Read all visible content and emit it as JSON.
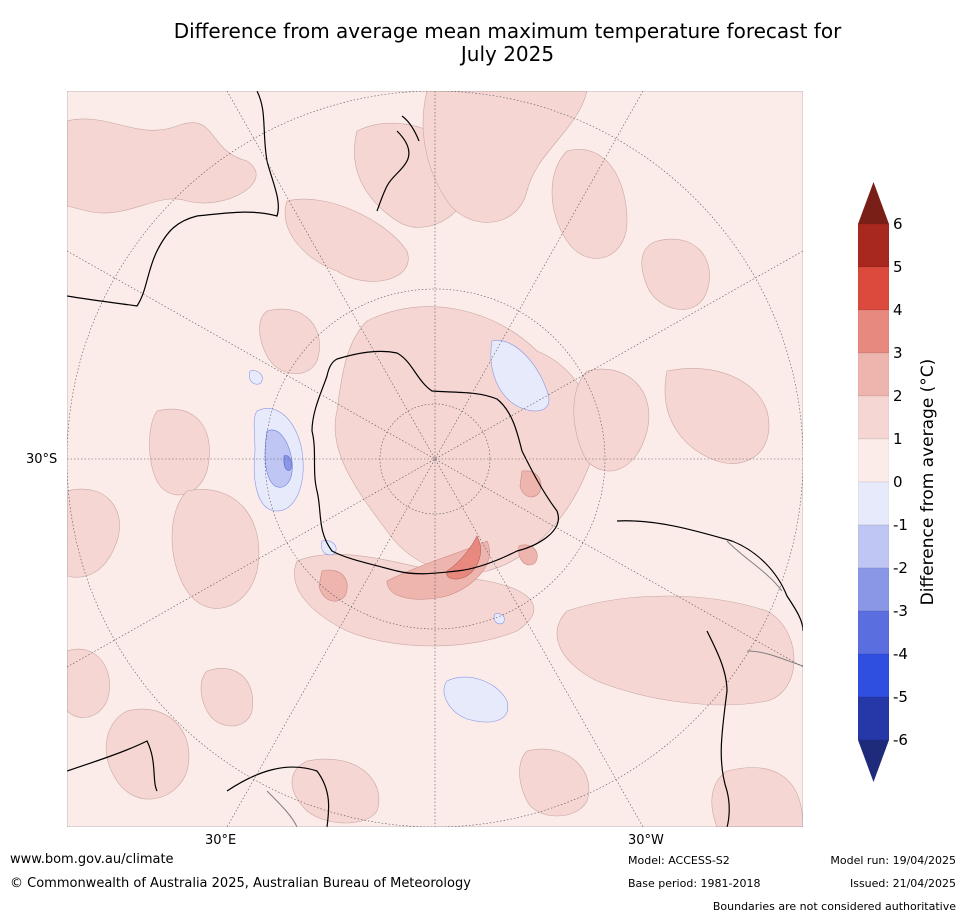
{
  "title_line1": "Difference from average mean maximum temperature forecast for",
  "title_line2": "July 2025",
  "map": {
    "graticule_labels": {
      "lat_30s": "30°S",
      "lon_30e": "30°E",
      "lon_30w": "30°W"
    },
    "colors": {
      "ocean_base": "#fbecea",
      "warm_0_1": "#fbecea",
      "warm_1_2": "#f5d6d3",
      "warm_2_3": "#eeb4ae",
      "warm_3_4": "#e8897f",
      "cool_0_m1": "#e7eafb",
      "cool_m1_m2": "#bfc6f3",
      "cool_m2_m3": "#8a97e6",
      "coastline": "#000000",
      "border": "#808080",
      "graticule": "#555555"
    }
  },
  "colorbar": {
    "title": "Difference from average (°C)",
    "ticks": [
      "6",
      "5",
      "4",
      "3",
      "2",
      "1",
      "0",
      "-1",
      "-2",
      "-3",
      "-4",
      "-5",
      "-6"
    ],
    "bands": [
      "#a8271f",
      "#db4a3d",
      "#e8897f",
      "#eeb4ae",
      "#f5d6d3",
      "#fbecea",
      "#e7eafb",
      "#bfc6f3",
      "#8a97e6",
      "#5a6ee0",
      "#2f4fe0",
      "#2637a8"
    ],
    "extend_top": "#7a1f18",
    "extend_bottom": "#1e2a7a"
  },
  "footer": {
    "website": "www.bom.gov.au/climate",
    "copyright": "© Commonwealth of Australia 2025, Australian Bureau of Meteorology",
    "model": "Model: ACCESS-S2",
    "base_period": "Base period: 1981-2018",
    "model_run": "Model run: 19/04/2025",
    "issued": "Issued: 21/04/2025",
    "disclaimer": "Boundaries are not considered authoritative"
  }
}
